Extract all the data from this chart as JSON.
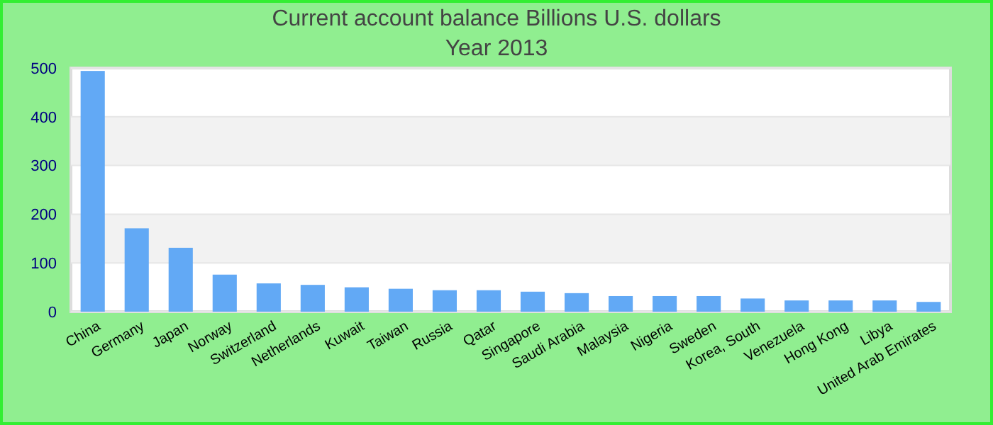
{
  "chart_data": {
    "type": "bar",
    "title": "Current account balance Billions U.S. dollars",
    "subtitle": "Year 2013",
    "categories": [
      "China",
      "Germany",
      "Japan",
      "Norway",
      "Switzerland",
      "Netherlands",
      "Kuwait",
      "Taiwan",
      "Russia",
      "Qatar",
      "Singapore",
      "Saudi Arabia",
      "Malaysia",
      "Nigeria",
      "Sweden",
      "Korea, South",
      "Venezuela",
      "Hong Kong",
      "Libya",
      "United Arab Emirates"
    ],
    "values": [
      494,
      171,
      131,
      76,
      58,
      55,
      50,
      47,
      44,
      44,
      41,
      38,
      32,
      32,
      32,
      27,
      23,
      23,
      23,
      20
    ],
    "color": "#62a9f5",
    "ylim": [
      0,
      500
    ],
    "yticks": [
      0,
      100,
      200,
      300,
      400,
      500
    ],
    "grid": "y"
  }
}
